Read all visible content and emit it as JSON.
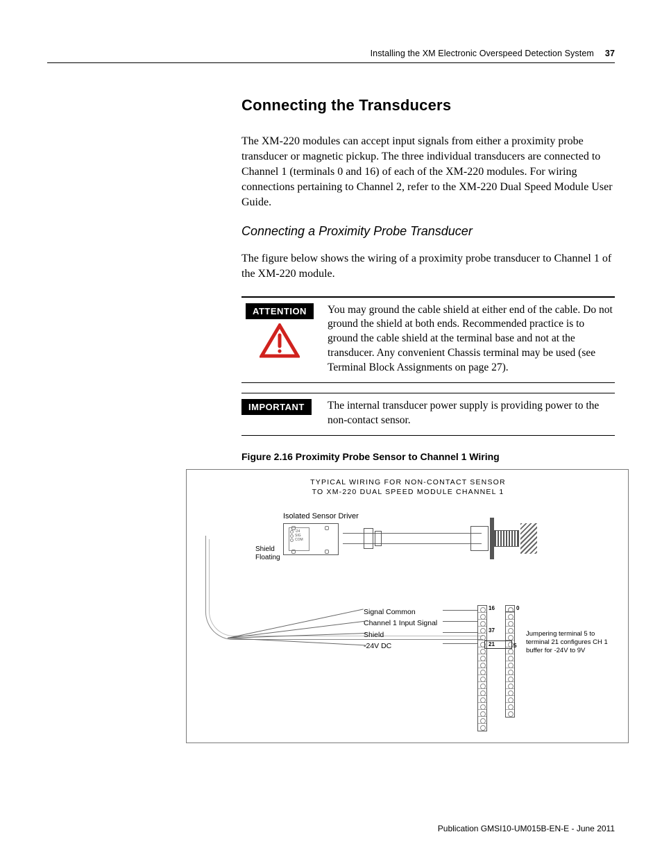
{
  "header": {
    "running_title": "Installing the XM Electronic Overspeed Detection System",
    "page_number": "37"
  },
  "section_title": "Connecting the Transducers",
  "intro_paragraph": "The XM-220 modules can accept input signals from either a proximity probe transducer or magnetic pickup. The three individual transducers are connected to Channel 1 (terminals 0 and 16) of each of the XM-220 modules. For wiring connections pertaining to Channel 2, refer to the XM-220 Dual Speed Module User Guide.",
  "subsection_title": "Connecting a Proximity Probe Transducer",
  "subsection_paragraph": "The figure below shows the wiring of a proximity probe transducer to Channel 1 of the XM-220 module.",
  "attention": {
    "badge": "ATTENTION",
    "icon_color": "#d0221e",
    "text": "You may ground the cable shield at either end of the cable. Do not ground the shield at both ends. Recommended practice is to ground the cable shield at the terminal base and not at the transducer. Any convenient Chassis terminal may be used (see Terminal Block Assignments on page 27)."
  },
  "important": {
    "badge": "IMPORTANT",
    "text": "The internal transducer power supply is providing power to the non-contact sensor."
  },
  "figure": {
    "title": "Figure 2.16  Proximity Probe Sensor to Channel 1 Wiring",
    "caption_line1": "TYPICAL WIRING FOR NON-CONTACT SENSOR",
    "caption_line2": "TO XM-220 DUAL SPEED MODULE CHANNEL 1",
    "driver_label": "Isolated Sensor Driver",
    "driver_pins": [
      "-24",
      "SIG",
      "COM"
    ],
    "shield_label_1": "Shield",
    "shield_label_2": "Floating",
    "signal_labels": [
      "Signal Common",
      "Channel 1 Input Signal",
      "Shield",
      "-24V DC"
    ],
    "terminals": {
      "t16": "16",
      "t0": "0",
      "t37": "37",
      "t21": "21",
      "t5": "5"
    },
    "jumper_note": "Jumpering terminal 5 to terminal 21 configures CH 1 buffer for -24V to 9V",
    "terminal_block_left_rows": 18,
    "terminal_block_right_rows": 16,
    "wire_color": "#666666",
    "frame_color": "#7a7a7a",
    "accent_color": "#555555"
  },
  "footer": {
    "publication": "Publication GMSI10-UM015B-EN-E - June 2011"
  }
}
